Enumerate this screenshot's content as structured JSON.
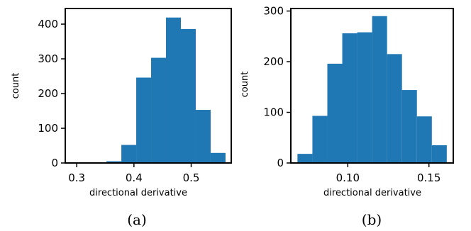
{
  "chart_data": [
    {
      "type": "bar",
      "caption": "(a)",
      "xlabel": "directional derivative",
      "ylabel": "count",
      "xlim": [
        0.28,
        0.57
      ],
      "ylim": [
        0,
        445
      ],
      "xticks": [
        0.3,
        0.4,
        0.5
      ],
      "xtick_labels": [
        "0.3",
        "0.4",
        "0.5"
      ],
      "yticks": [
        0,
        100,
        200,
        300,
        400
      ],
      "bin_edges": [
        0.3,
        0.326,
        0.352,
        0.378,
        0.404,
        0.43,
        0.456,
        0.482,
        0.508,
        0.534,
        0.56
      ],
      "values": [
        1,
        1,
        5,
        52,
        246,
        303,
        419,
        386,
        153,
        29
      ],
      "color": "#1f77b4",
      "grid": false
    },
    {
      "type": "bar",
      "caption": "(b)",
      "xlabel": "directional derivative",
      "ylabel": "count",
      "xlim": [
        0.0649,
        0.165
      ],
      "ylim": [
        0,
        305
      ],
      "xticks": [
        0.1,
        0.15
      ],
      "xtick_labels": [
        "0.10",
        "0.15"
      ],
      "yticks": [
        0,
        100,
        200,
        300
      ],
      "bin_edges": [
        0.069,
        0.0782,
        0.0874,
        0.0966,
        0.1058,
        0.115,
        0.1242,
        0.1334,
        0.1426,
        0.1518,
        0.161
      ],
      "values": [
        18,
        93,
        196,
        256,
        258,
        290,
        215,
        144,
        92,
        35
      ],
      "color": "#1f77b4",
      "grid": false
    }
  ]
}
